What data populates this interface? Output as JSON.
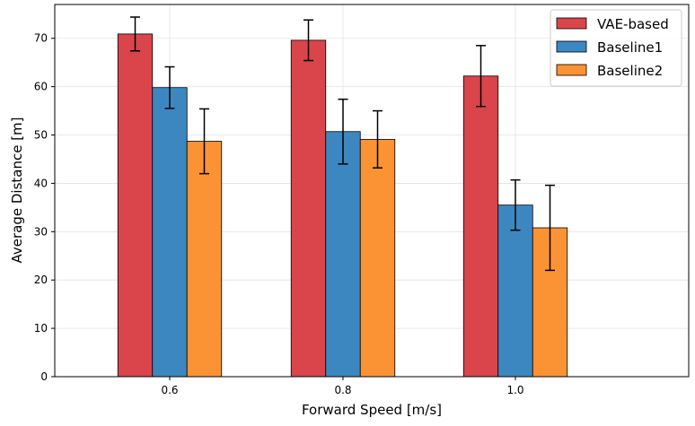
{
  "chart_data": {
    "type": "bar",
    "title": "",
    "xlabel": "Forward Speed [m/s]",
    "ylabel": "Average Distance [m]",
    "categories": [
      "0.6",
      "0.8",
      "1.0"
    ],
    "ylim": [
      0,
      77
    ],
    "yticks": [
      "0",
      "10",
      "20",
      "30",
      "40",
      "50",
      "60",
      "70"
    ],
    "grid": true,
    "legend_position": "top-right",
    "series": [
      {
        "name": "VAE-based",
        "color": "#d9454a",
        "values": [
          70.9,
          69.6,
          62.2
        ],
        "errors": [
          3.5,
          4.2,
          6.3
        ]
      },
      {
        "name": "Baseline1",
        "color": "#3d87c0",
        "values": [
          59.8,
          50.7,
          35.5
        ],
        "errors": [
          4.3,
          6.7,
          5.2
        ]
      },
      {
        "name": "Baseline2",
        "color": "#fb9334",
        "values": [
          48.7,
          49.1,
          30.8
        ],
        "errors": [
          6.7,
          5.9,
          8.8
        ]
      }
    ]
  }
}
